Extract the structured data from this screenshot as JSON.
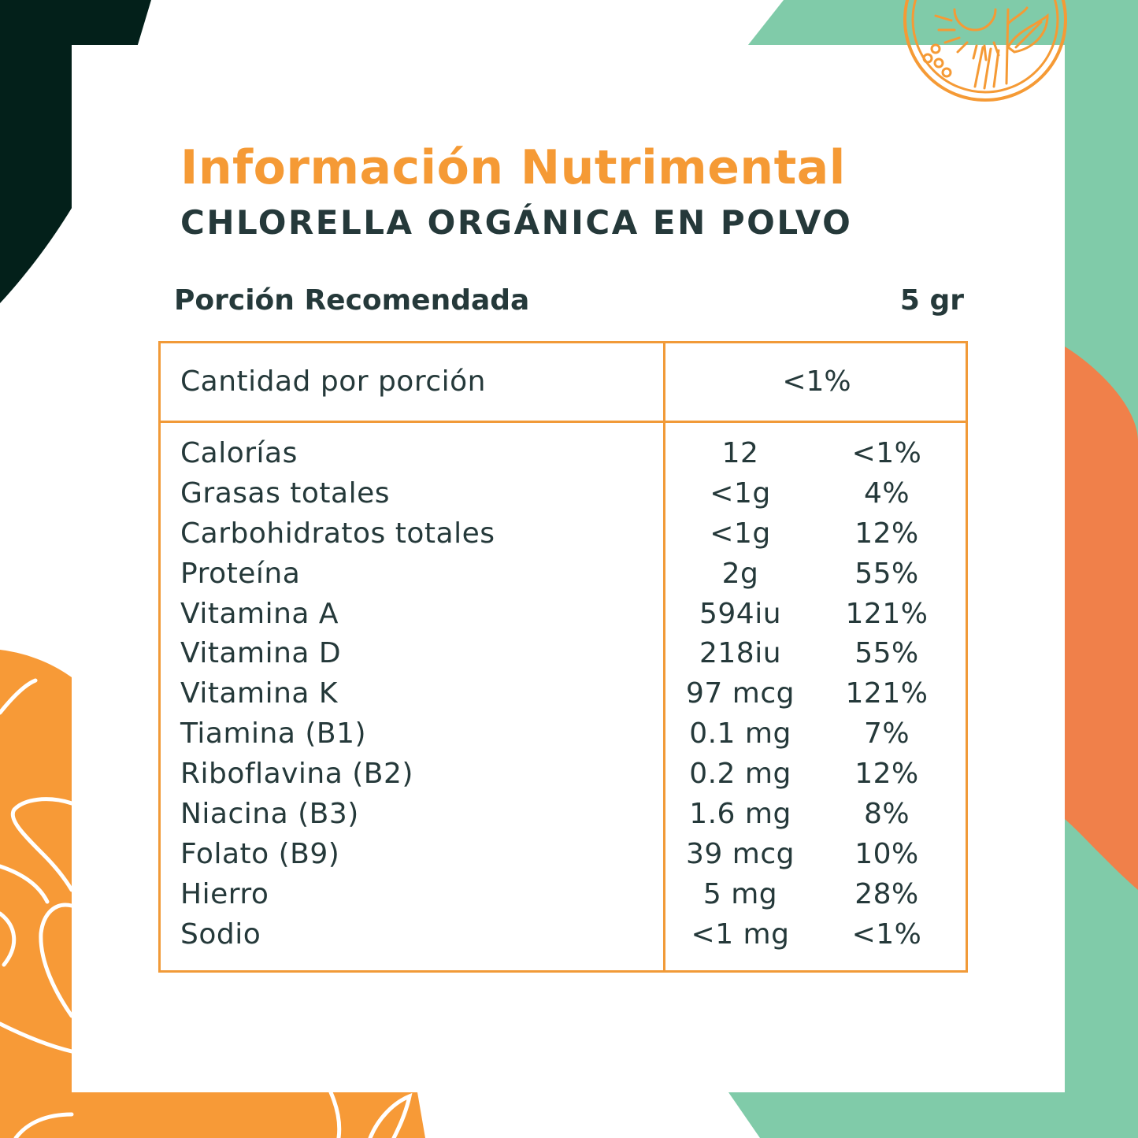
{
  "colors": {
    "accent_orange": "#f59a35",
    "table_border": "#f19a38",
    "text_dark": "#25393a",
    "bg_dark_green": "#03201a",
    "bg_mint": "#80cba9",
    "bg_coral": "#f0804a",
    "bg_orange": "#f79a37"
  },
  "icons": [
    "sun-leaf-logo-icon"
  ],
  "header": {
    "title": "Información Nutrimental",
    "subtitle": "CHLORELLA ORGÁNICA EN POLVO"
  },
  "serving": {
    "label": "Porción Recomendada",
    "value": "5 gr"
  },
  "table": {
    "head_label": "Cantidad por porción",
    "head_value": "<1%",
    "rows": [
      {
        "name": "Calorías",
        "amount": "12",
        "percent": "<1%"
      },
      {
        "name": "Grasas totales",
        "amount": "<1g",
        "percent": "4%"
      },
      {
        "name": "Carbohidratos totales",
        "amount": "<1g",
        "percent": "12%"
      },
      {
        "name": "Proteína",
        "amount": "2g",
        "percent": "55%"
      },
      {
        "name": "Vitamina A",
        "amount": "594iu",
        "percent": "121%"
      },
      {
        "name": "Vitamina D",
        "amount": "218iu",
        "percent": "55%"
      },
      {
        "name": "Vitamina K",
        "amount": "97 mcg",
        "percent": "121%"
      },
      {
        "name": "Tiamina (B1)",
        "amount": "0.1 mg",
        "percent": "7%"
      },
      {
        "name": "Riboflavina (B2)",
        "amount": "0.2 mg",
        "percent": "12%"
      },
      {
        "name": "Niacina (B3)",
        "amount": "1.6 mg",
        "percent": "8%"
      },
      {
        "name": "Folato (B9)",
        "amount": "39 mcg",
        "percent": "10%"
      },
      {
        "name": "Hierro",
        "amount": "5 mg",
        "percent": "28%"
      },
      {
        "name": "Sodio",
        "amount": "<1 mg",
        "percent": "<1%"
      }
    ]
  }
}
